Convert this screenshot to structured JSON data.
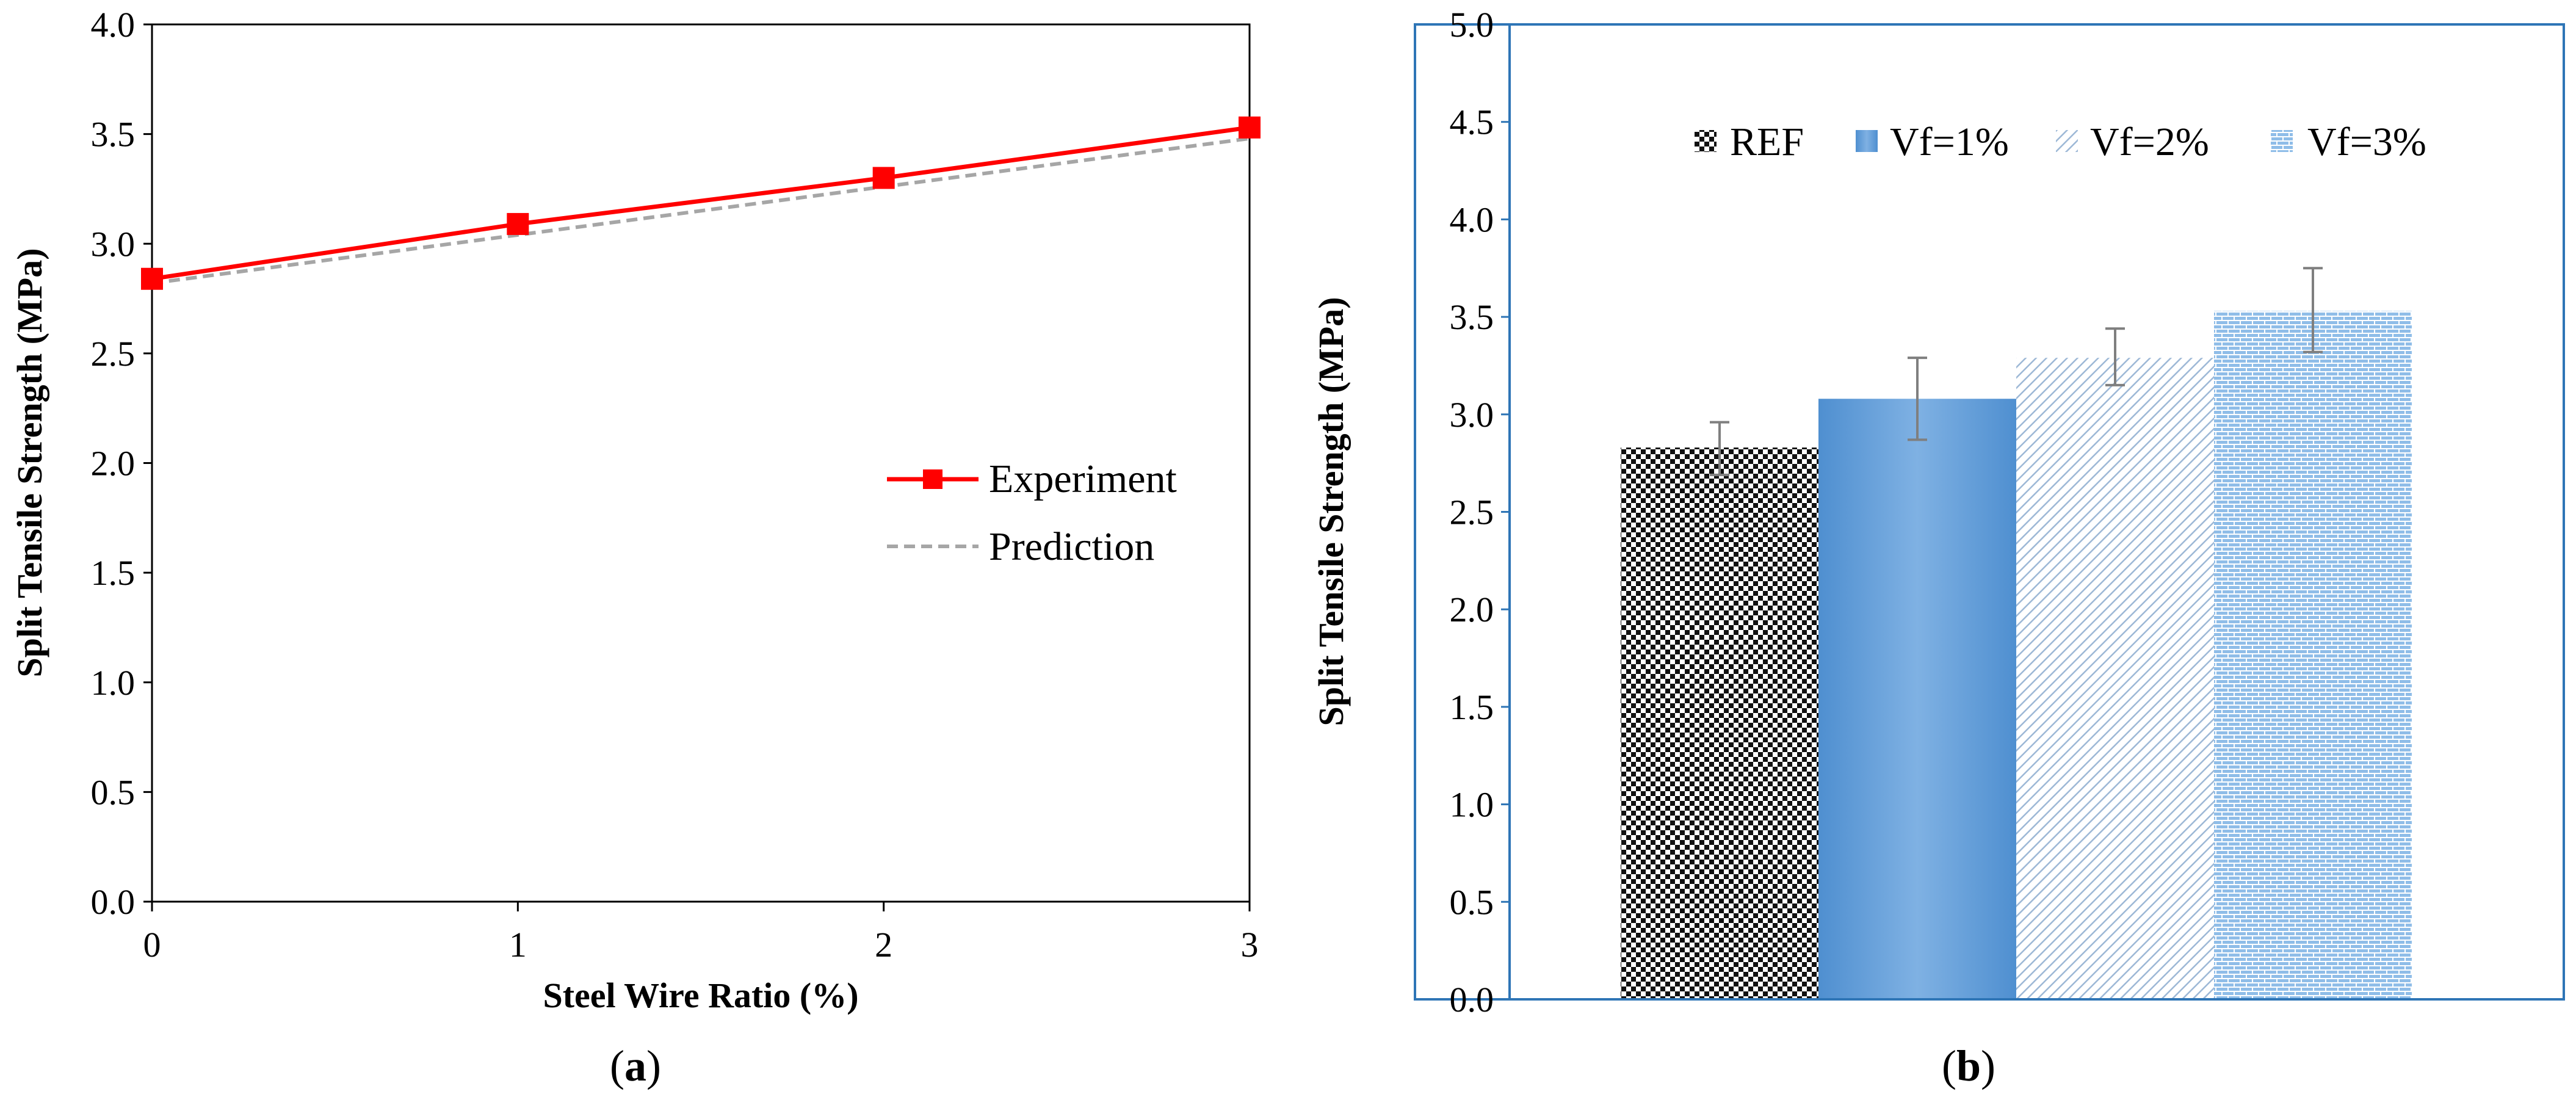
{
  "panels": {
    "a": {
      "label_open": "(",
      "label_letter": "a",
      "label_close": ")"
    },
    "b": {
      "label_open": "(",
      "label_letter": "b",
      "label_close": ")"
    }
  },
  "chart_data": [
    {
      "type": "line",
      "title": "",
      "xlabel": "Steel Wire Ratio (%)",
      "ylabel": "Split Tensile Strength (MPa)",
      "x": [
        0,
        1,
        2,
        3
      ],
      "xlim": [
        0,
        3
      ],
      "ylim": [
        0,
        4
      ],
      "xticks": [
        "0",
        "1",
        "2",
        "3"
      ],
      "yticks": [
        "0.0",
        "0.5",
        "1.0",
        "1.5",
        "2.0",
        "2.5",
        "3.0",
        "3.5",
        "4.0"
      ],
      "legend_position": "center-right",
      "series": [
        {
          "name": "Experiment",
          "values": [
            2.84,
            3.09,
            3.3,
            3.53
          ],
          "color": "#ff0000",
          "style": "solid",
          "marker": "square"
        },
        {
          "name": "Prediction",
          "values": [
            2.82,
            3.04,
            3.26,
            3.48
          ],
          "color": "#a6a6a6",
          "style": "dashed",
          "marker": "none"
        }
      ],
      "grid": false
    },
    {
      "type": "bar",
      "title": "",
      "xlabel": "",
      "ylabel": "Split Tensile Strength (MPa)",
      "ylim": [
        0,
        5
      ],
      "yticks": [
        "0.0",
        "0.5",
        "1.0",
        "1.5",
        "2.0",
        "2.5",
        "3.0",
        "3.5",
        "4.0",
        "4.5",
        "5.0"
      ],
      "legend_position": "top",
      "series": [
        {
          "name": "REF",
          "value": 2.83,
          "error_low": 2.69,
          "error_high": 2.96,
          "pattern": "checker"
        },
        {
          "name": "Vf=1%",
          "value": 3.08,
          "error_low": 2.87,
          "error_high": 3.29,
          "pattern": "solid"
        },
        {
          "name": "Vf=2%",
          "value": 3.29,
          "error_low": 3.15,
          "error_high": 3.44,
          "pattern": "diagonal"
        },
        {
          "name": "Vf=3%",
          "value": 3.53,
          "error_low": 3.32,
          "error_high": 3.75,
          "pattern": "brick"
        }
      ],
      "colors": {
        "frame": "#2e75b6",
        "bar_blue": "#5b9bd5",
        "checker_dark": "#000000",
        "error_bar": "#7f7f7f"
      },
      "grid": false
    }
  ]
}
